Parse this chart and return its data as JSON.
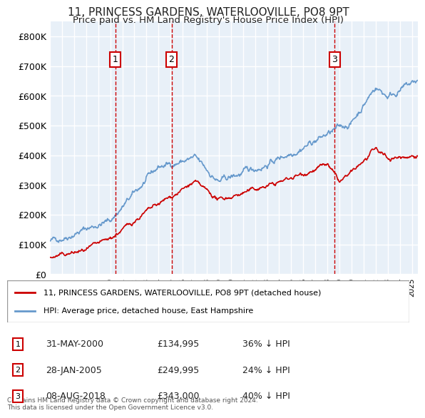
{
  "title": "11, PRINCESS GARDENS, WATERLOOVILLE, PO8 9PT",
  "subtitle": "Price paid vs. HM Land Registry's House Price Index (HPI)",
  "legend_label_red": "11, PRINCESS GARDENS, WATERLOOVILLE, PO8 9PT (detached house)",
  "legend_label_blue": "HPI: Average price, detached house, East Hampshire",
  "footer_line1": "Contains HM Land Registry data © Crown copyright and database right 2024.",
  "footer_line2": "This data is licensed under the Open Government Licence v3.0.",
  "sale_markers": [
    {
      "num": 1,
      "date": "31-MAY-2000",
      "price": "£134,995",
      "pct": "36% ↓ HPI",
      "year": 2000.42
    },
    {
      "num": 2,
      "date": "28-JAN-2005",
      "price": "£249,995",
      "pct": "24% ↓ HPI",
      "year": 2005.08
    },
    {
      "num": 3,
      "date": "08-AUG-2018",
      "price": "£343,000",
      "pct": "40% ↓ HPI",
      "year": 2018.6
    }
  ],
  "ylim": [
    0,
    850000
  ],
  "xlim_start": 1995.0,
  "xlim_end": 2025.5,
  "yticks": [
    0,
    100000,
    200000,
    300000,
    400000,
    500000,
    600000,
    700000,
    800000
  ],
  "ytick_labels": [
    "£0",
    "£100K",
    "£200K",
    "£300K",
    "£400K",
    "£500K",
    "£600K",
    "£700K",
    "£800K"
  ],
  "xticks": [
    1995,
    1996,
    1997,
    1998,
    1999,
    2000,
    2001,
    2002,
    2003,
    2004,
    2005,
    2006,
    2007,
    2008,
    2009,
    2010,
    2011,
    2012,
    2013,
    2014,
    2015,
    2016,
    2017,
    2018,
    2019,
    2020,
    2021,
    2022,
    2023,
    2024,
    2025
  ],
  "background_color": "#ffffff",
  "plot_background": "#e8f0f8",
  "grid_color": "#ffffff",
  "red_color": "#cc0000",
  "blue_color": "#6699cc"
}
